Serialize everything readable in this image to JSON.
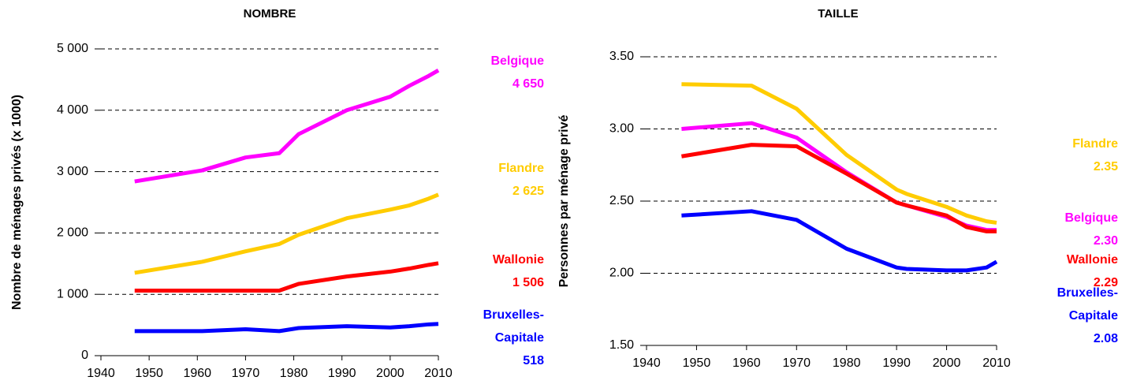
{
  "chart_data": [
    {
      "type": "line",
      "title": "NOMBRE",
      "y_label": "Nombre de ménages privés (x 1000)",
      "x": [
        1947,
        1961,
        1970,
        1977,
        1981,
        1991,
        2000,
        2004,
        2008,
        2010
      ],
      "xlim": [
        1940,
        2010
      ],
      "xticks": [
        1940,
        1950,
        1960,
        1970,
        1980,
        1990,
        2000,
        2010
      ],
      "ylim": [
        0,
        5000
      ],
      "yticks": [
        0,
        {
          "value": 1000,
          "label": "1 000"
        },
        {
          "value": 2000,
          "label": "2 000"
        },
        {
          "value": 3000,
          "label": "3 000"
        },
        {
          "value": 4000,
          "label": "4 000"
        },
        {
          "value": 5000,
          "label": "5 000"
        }
      ],
      "grid": true,
      "series": [
        {
          "name": "Belgique",
          "color": "#ff00ff",
          "values": [
            2840,
            3020,
            3230,
            3300,
            3610,
            4000,
            4220,
            4400,
            4560,
            4650
          ],
          "value_labels": [
            null,
            null,
            null,
            null,
            null,
            null,
            null,
            null,
            null,
            "4 650"
          ]
        },
        {
          "name": "Flandre",
          "color": "#ffcc00",
          "values": [
            1350,
            1530,
            1700,
            1820,
            1970,
            2240,
            2380,
            2450,
            2560,
            2625
          ],
          "value_labels": [
            null,
            null,
            null,
            null,
            null,
            null,
            null,
            null,
            null,
            "2 625"
          ]
        },
        {
          "name": "Wallonie",
          "color": "#ff0000",
          "values": [
            1060,
            1060,
            1060,
            1060,
            1170,
            1290,
            1370,
            1420,
            1480,
            1506
          ],
          "value_labels": [
            null,
            null,
            null,
            null,
            null,
            null,
            null,
            null,
            null,
            "1 506"
          ]
        },
        {
          "name": "Bruxelles-Capitale",
          "color": "#0000ff",
          "values": [
            400,
            400,
            430,
            400,
            450,
            480,
            460,
            480,
            510,
            518
          ]
        }
      ]
    },
    {
      "type": "line",
      "title": "TAILLE",
      "y_label": "Personnes par ménage privé",
      "x": [
        1947,
        1961,
        1970,
        1980,
        1990,
        1992,
        2000,
        2004,
        2008,
        2010
      ],
      "xlim": [
        1940,
        2010
      ],
      "xticks": [
        1940,
        1950,
        1960,
        1970,
        1980,
        1990,
        2000,
        2010
      ],
      "ylim": [
        1.5,
        3.5
      ],
      "yticks": [
        {
          "value": 1.5,
          "label": "1.50"
        },
        {
          "value": 2,
          "label": "2.00"
        },
        {
          "value": 2.5,
          "label": "2.50"
        },
        {
          "value": 3,
          "label": "3.00"
        },
        {
          "value": 3.5,
          "label": "3.50"
        }
      ],
      "grid": true,
      "series": [
        {
          "name": "Flandre",
          "color": "#ffcc00",
          "values": [
            3.31,
            3.3,
            3.14,
            2.82,
            2.58,
            2.55,
            2.46,
            2.4,
            2.36,
            2.35
          ]
        },
        {
          "name": "Belgique",
          "color": "#ff00ff",
          "values": [
            3.0,
            3.04,
            2.94,
            2.7,
            2.49,
            2.47,
            2.39,
            2.33,
            2.3,
            2.3
          ],
          "value_labels": [
            null,
            null,
            null,
            null,
            null,
            null,
            null,
            null,
            null,
            "2.30"
          ]
        },
        {
          "name": "Wallonie",
          "color": "#ff0000",
          "values": [
            2.81,
            2.89,
            2.88,
            2.69,
            2.49,
            2.47,
            2.4,
            2.32,
            2.29,
            2.29
          ]
        },
        {
          "name": "Bruxelles-Capitale",
          "color": "#0000ff",
          "values": [
            2.4,
            2.43,
            2.37,
            2.17,
            2.04,
            2.03,
            2.02,
            2.02,
            2.04,
            2.08
          ]
        }
      ]
    }
  ]
}
